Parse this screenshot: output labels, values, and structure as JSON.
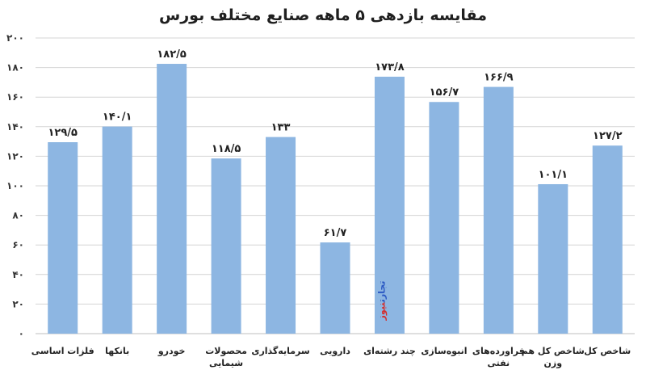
{
  "chart_data": {
    "type": "bar",
    "title": "مقایسه بازدهی ۵ ماهه صنایع مختلف بورس",
    "categories": [
      [
        "فلزات اساسی"
      ],
      [
        "بانکها"
      ],
      [
        "خودرو"
      ],
      [
        "محصولات",
        "شیمایی"
      ],
      [
        "سرمایه‌گذاری"
      ],
      [
        "دارویی"
      ],
      [
        "چند رشته‌ای"
      ],
      [
        "انبوه‌سازی"
      ],
      [
        "فراورده‌های",
        "نفتی"
      ],
      [
        "شاخص کل هم",
        "وزن"
      ],
      [
        "شاخص کل"
      ]
    ],
    "values": [
      129.5,
      140.1,
      182.5,
      118.5,
      133,
      61.7,
      173.8,
      156.7,
      166.9,
      101.1,
      127.2
    ],
    "value_labels": [
      "۱۲۹/۵",
      "۱۴۰/۱",
      "۱۸۲/۵",
      "۱۱۸/۵",
      "۱۳۳",
      "۶۱/۷",
      "۱۷۳/۸",
      "۱۵۶/۷",
      "۱۶۶/۹",
      "۱۰۱/۱",
      "۱۲۷/۲"
    ],
    "ylim": [
      0,
      200
    ],
    "yticks": [
      0,
      20,
      40,
      60,
      80,
      100,
      120,
      140,
      160,
      180,
      200
    ],
    "ytick_labels": [
      "۰",
      "۲۰",
      "۴۰",
      "۶۰",
      "۸۰",
      "۱۰۰",
      "۱۲۰",
      "۱۴۰",
      "۱۶۰",
      "۱۸۰",
      "۲۰۰"
    ],
    "grid": true,
    "bar_color": "#8db6e2"
  },
  "watermark": {
    "part1": "تجارت",
    "part2": "نیوز",
    "color1": "#2b59c3",
    "color2": "#d32f2f"
  }
}
